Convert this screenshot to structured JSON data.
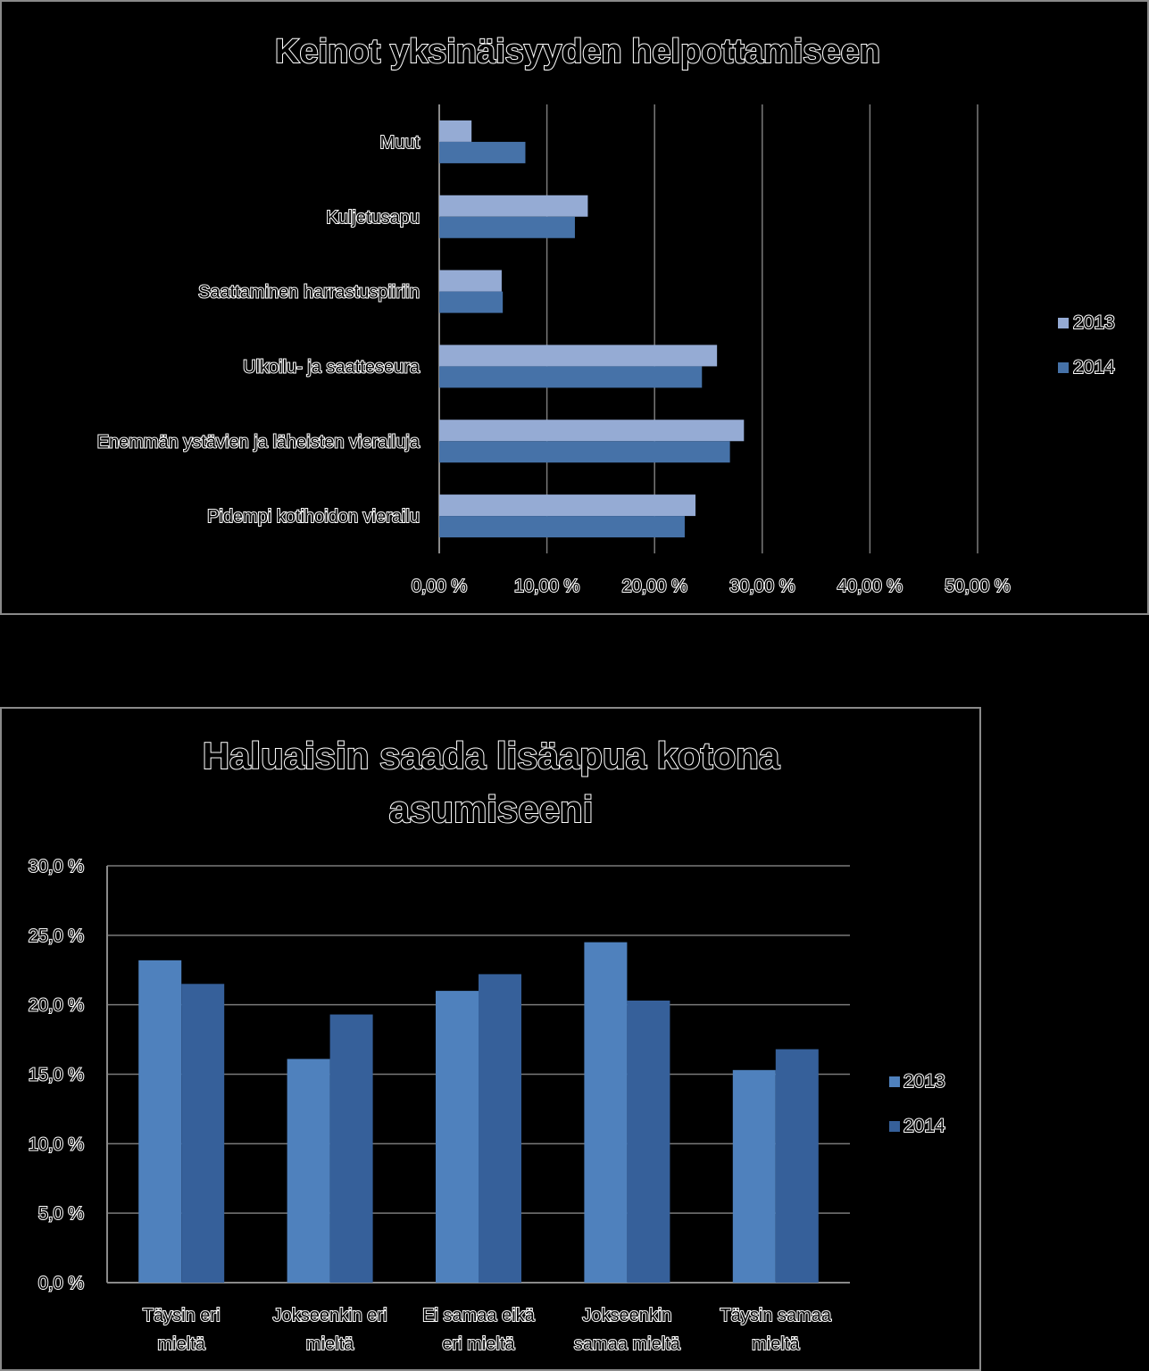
{
  "chart_data": [
    {
      "type": "bar",
      "orientation": "horizontal",
      "title": "Keinot yksinäisyyden helpottamiseen",
      "categories": [
        "Muut",
        "Kuljetusapu",
        "Saattaminen harrastuspiiriin",
        "Ulkoilu- ja saatteseura",
        "Enemmän ystävien ja läheisten vierailuja",
        "Pidempi kotihoidon vierailu"
      ],
      "series": [
        {
          "name": "2013",
          "color": "#95abd4",
          "values": [
            3.0,
            13.8,
            5.8,
            25.8,
            28.3,
            23.8
          ]
        },
        {
          "name": "2014",
          "color": "#4672a8",
          "values": [
            8.0,
            12.6,
            5.9,
            24.4,
            27.0,
            22.8
          ]
        }
      ],
      "xlim": [
        0,
        50
      ],
      "xticks": [
        "0,00 %",
        "10,00 %",
        "20,00 %",
        "30,00 %",
        "40,00 %",
        "50,00 %"
      ],
      "grid": true,
      "legend": "right"
    },
    {
      "type": "bar",
      "orientation": "vertical",
      "title": [
        "Haluaisin saada lisäapua kotona",
        "asumiseeni"
      ],
      "categories": [
        [
          "Täysin eri",
          "mieltä"
        ],
        [
          "Jokseenkin eri",
          "mieltä"
        ],
        [
          "Ei samaa eikä",
          "eri mieltä"
        ],
        [
          "Jokseenkin",
          "samaa mieltä"
        ],
        [
          "Täysin samaa",
          "mieltä"
        ]
      ],
      "series": [
        {
          "name": "2013",
          "color": "#4f81bd",
          "values": [
            23.2,
            16.1,
            21.0,
            24.5,
            15.3
          ]
        },
        {
          "name": "2014",
          "color": "#36609a",
          "values": [
            21.5,
            19.3,
            22.2,
            20.3,
            16.8
          ]
        }
      ],
      "ylim": [
        0,
        30
      ],
      "yticks": [
        "0,0 %",
        "5,0 %",
        "10,0 %",
        "15,0 %",
        "20,0 %",
        "25,0 %",
        "30,0 %"
      ],
      "grid": true,
      "legend": "right"
    }
  ]
}
